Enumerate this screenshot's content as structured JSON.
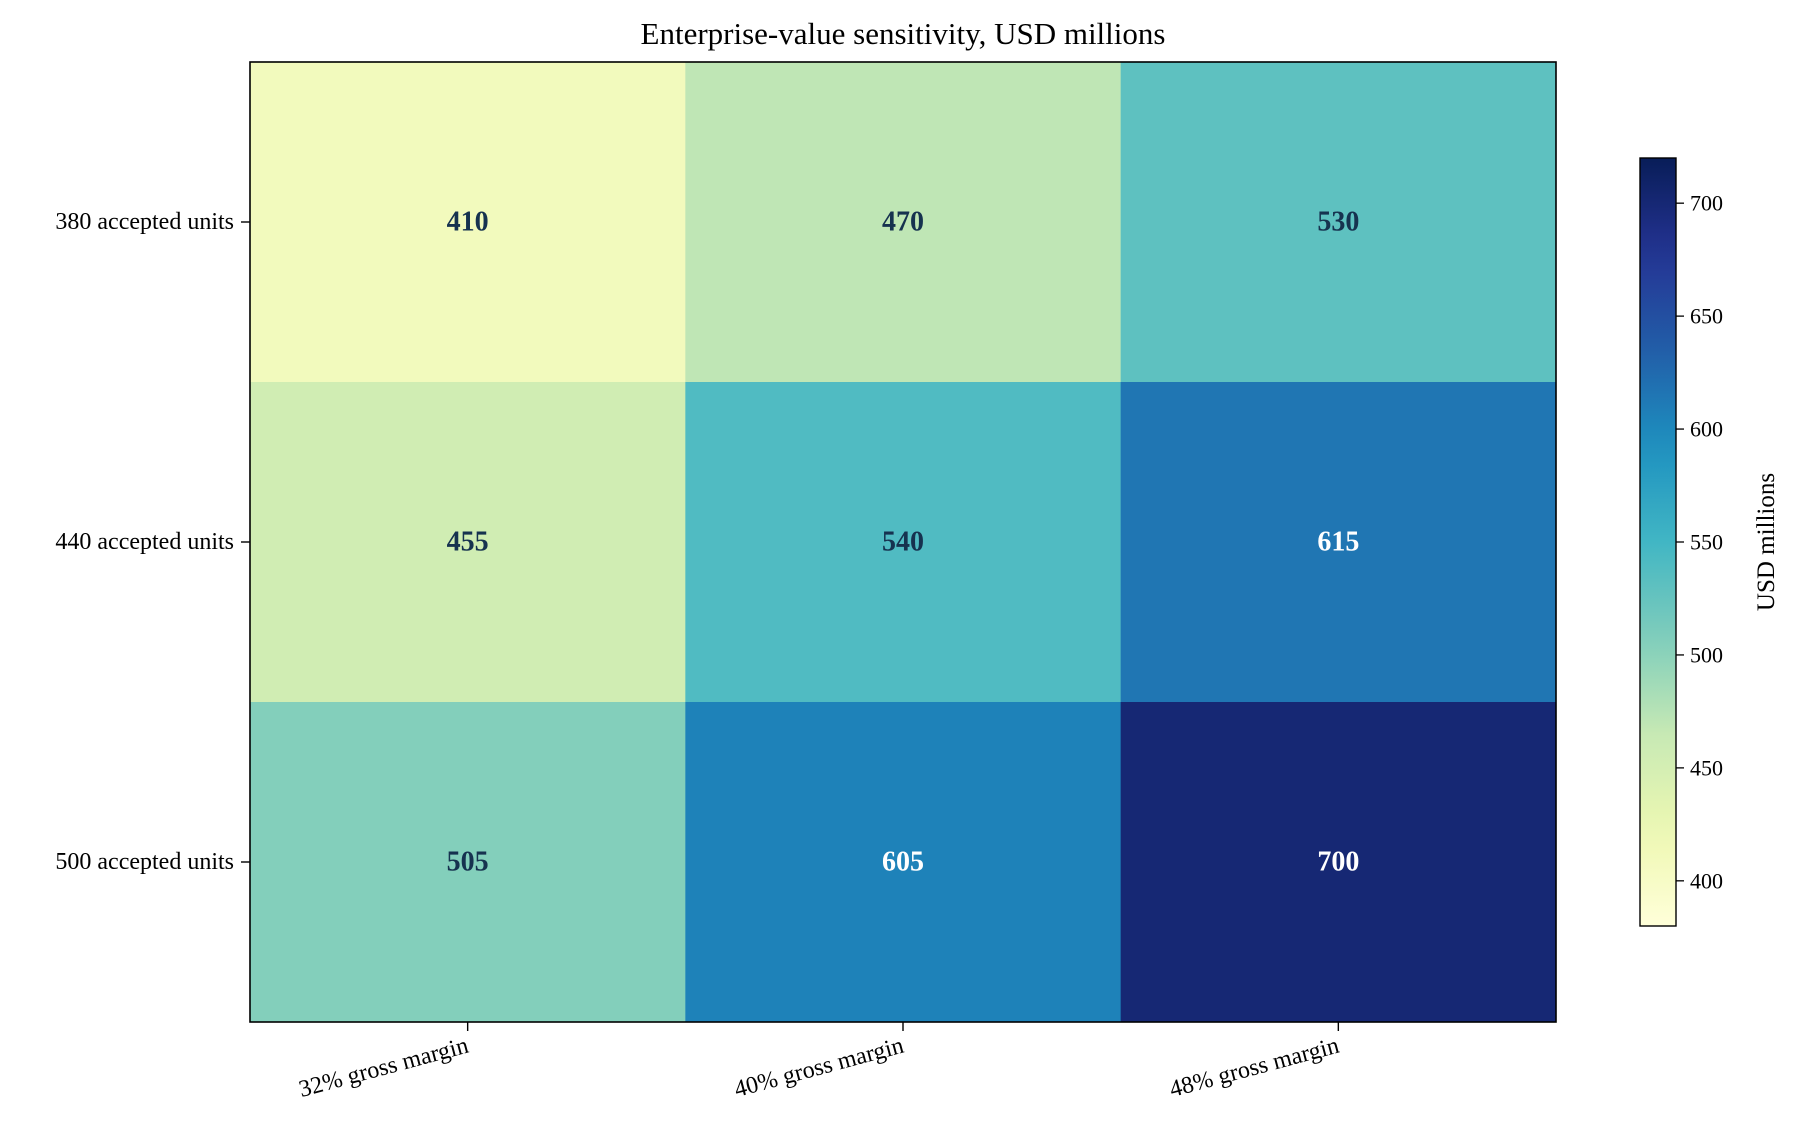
{
  "chart_data": {
    "type": "heatmap",
    "title": "Enterprise-value sensitivity, USD millions",
    "x_categories": [
      "32% gross margin",
      "40% gross margin",
      "48% gross margin"
    ],
    "y_categories": [
      "380 accepted units",
      "440 accepted units",
      "500 accepted units"
    ],
    "values": [
      [
        410,
        470,
        530
      ],
      [
        455,
        540,
        615
      ],
      [
        505,
        605,
        700
      ]
    ],
    "colorbar": {
      "label": "USD millions",
      "range": [
        380,
        720
      ],
      "ticks": [
        400,
        450,
        500,
        550,
        600,
        650,
        700
      ],
      "colormap": "YlGnBu"
    },
    "cell_text_colors": {
      "dark": "#16324f",
      "light": "#ffffff"
    },
    "xlabel": "",
    "ylabel": ""
  }
}
